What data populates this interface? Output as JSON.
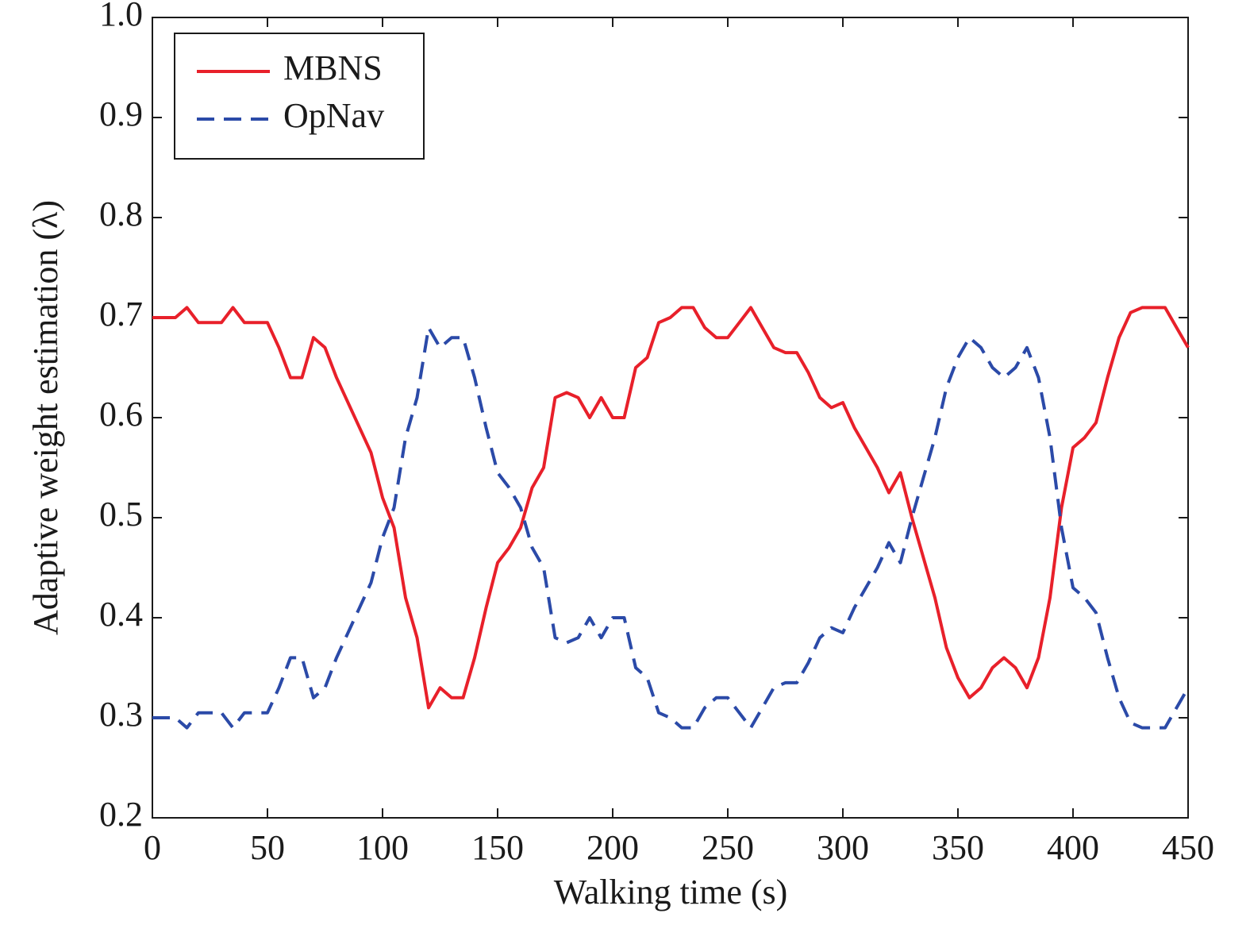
{
  "chart_data": {
    "type": "line",
    "xlabel": "Walking time (s)",
    "ylabel": "Adaptive weight estimation (λ)",
    "x": [
      0,
      5,
      10,
      15,
      20,
      25,
      30,
      35,
      40,
      45,
      50,
      55,
      60,
      65,
      70,
      75,
      80,
      85,
      90,
      95,
      100,
      105,
      110,
      115,
      120,
      125,
      130,
      135,
      140,
      145,
      150,
      155,
      160,
      165,
      170,
      175,
      180,
      185,
      190,
      195,
      200,
      205,
      210,
      215,
      220,
      225,
      230,
      235,
      240,
      245,
      250,
      255,
      260,
      265,
      270,
      275,
      280,
      285,
      290,
      295,
      300,
      305,
      310,
      315,
      320,
      325,
      330,
      335,
      340,
      345,
      350,
      355,
      360,
      365,
      370,
      375,
      380,
      385,
      390,
      395,
      400,
      405,
      410,
      415,
      420,
      425,
      430,
      435,
      440,
      445,
      450
    ],
    "series": [
      {
        "name": "MBNS",
        "color": "#e8202a",
        "dash": "solid",
        "values": [
          0.7,
          0.7,
          0.7,
          0.71,
          0.695,
          0.695,
          0.695,
          0.71,
          0.695,
          0.695,
          0.695,
          0.67,
          0.64,
          0.64,
          0.68,
          0.67,
          0.64,
          0.615,
          0.59,
          0.565,
          0.52,
          0.49,
          0.42,
          0.38,
          0.31,
          0.33,
          0.32,
          0.32,
          0.36,
          0.41,
          0.455,
          0.47,
          0.49,
          0.53,
          0.55,
          0.62,
          0.625,
          0.62,
          0.6,
          0.62,
          0.6,
          0.6,
          0.65,
          0.66,
          0.695,
          0.7,
          0.71,
          0.71,
          0.69,
          0.68,
          0.68,
          0.695,
          0.71,
          0.69,
          0.67,
          0.665,
          0.665,
          0.645,
          0.62,
          0.61,
          0.615,
          0.59,
          0.57,
          0.55,
          0.525,
          0.545,
          0.5,
          0.46,
          0.42,
          0.37,
          0.34,
          0.32,
          0.33,
          0.35,
          0.36,
          0.35,
          0.33,
          0.36,
          0.42,
          0.51,
          0.57,
          0.58,
          0.595,
          0.64,
          0.68,
          0.705,
          0.71,
          0.71,
          0.71,
          0.69,
          0.67
        ]
      },
      {
        "name": "OpNav",
        "color": "#2b4aa8",
        "dash": "dashed",
        "values": [
          0.3,
          0.3,
          0.3,
          0.29,
          0.305,
          0.305,
          0.305,
          0.29,
          0.305,
          0.305,
          0.305,
          0.33,
          0.36,
          0.36,
          0.32,
          0.33,
          0.36,
          0.385,
          0.41,
          0.435,
          0.48,
          0.51,
          0.58,
          0.62,
          0.69,
          0.67,
          0.68,
          0.68,
          0.64,
          0.59,
          0.545,
          0.53,
          0.51,
          0.47,
          0.45,
          0.38,
          0.375,
          0.38,
          0.4,
          0.38,
          0.4,
          0.4,
          0.35,
          0.34,
          0.305,
          0.3,
          0.29,
          0.29,
          0.31,
          0.32,
          0.32,
          0.305,
          0.29,
          0.31,
          0.33,
          0.335,
          0.335,
          0.355,
          0.38,
          0.39,
          0.385,
          0.41,
          0.43,
          0.45,
          0.475,
          0.455,
          0.5,
          0.54,
          0.58,
          0.63,
          0.66,
          0.68,
          0.67,
          0.65,
          0.64,
          0.65,
          0.67,
          0.64,
          0.58,
          0.49,
          0.43,
          0.42,
          0.405,
          0.36,
          0.32,
          0.295,
          0.29,
          0.29,
          0.29,
          0.31,
          0.33
        ]
      }
    ],
    "xlim": [
      0,
      450
    ],
    "xticks": [
      0,
      50,
      100,
      150,
      200,
      250,
      300,
      350,
      400,
      450
    ],
    "ylim": [
      0.2,
      1
    ],
    "yticks": [
      0.2,
      0.3,
      0.4,
      0.5,
      0.6,
      0.7,
      0.8,
      0.9,
      {
        "value": 1,
        "label": "1.0"
      }
    ],
    "grid": false,
    "legend": "upper left"
  }
}
